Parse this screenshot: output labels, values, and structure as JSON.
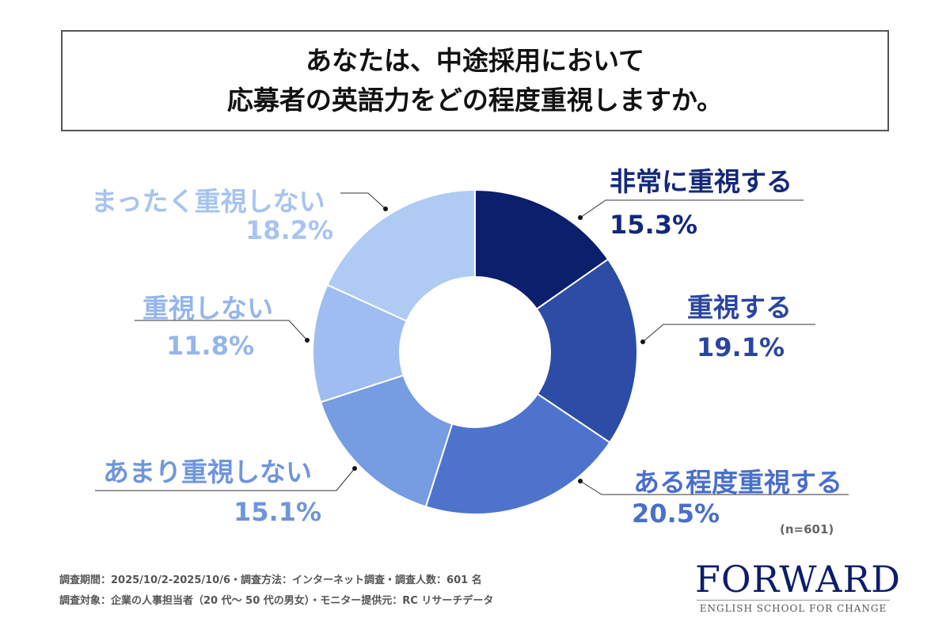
{
  "title_lines": [
    "あなたは、中途採用において",
    "応募者の英語力をどの程度重視しますか。"
  ],
  "chart_data": {
    "type": "pie",
    "donut": true,
    "start": "top, clockwise",
    "slices": [
      {
        "label": "非常に重視する",
        "value": 15.3,
        "display": "15.3%",
        "color": "#0b1f6c",
        "text_color": "#14287a"
      },
      {
        "label": "重視する",
        "value": 19.1,
        "display": "19.1%",
        "color": "#2c4ca6",
        "text_color": "#2a45a0"
      },
      {
        "label": "ある程度重視する",
        "value": 20.5,
        "display": "20.5%",
        "color": "#4d73cd",
        "text_color": "#4a6fcb"
      },
      {
        "label": "あまり重視しない",
        "value": 15.1,
        "display": "15.1%",
        "color": "#769ce2",
        "text_color": "#6f95dc"
      },
      {
        "label": "重視しない",
        "value": 11.8,
        "display": "11.8%",
        "color": "#9fbdf0",
        "text_color": "#95b5ec"
      },
      {
        "label": "まったく重視しない",
        "value": 18.2,
        "display": "18.2%",
        "color": "#afcbf3",
        "text_color": "#a7c4f1"
      }
    ]
  },
  "n_label": "(n=601)",
  "footer": [
    "調査期間：2025/10/2-2025/10/6・調査方法：インターネット調査・調査人数：601 名",
    "調査対象：企業の人事担当者（20 代〜 50 代の男女）・モニター提供元：RC リサーチデータ"
  ],
  "logo": {
    "name": "FORWARD",
    "tagline": "ENGLISH SCHOOL FOR CHANGE"
  }
}
